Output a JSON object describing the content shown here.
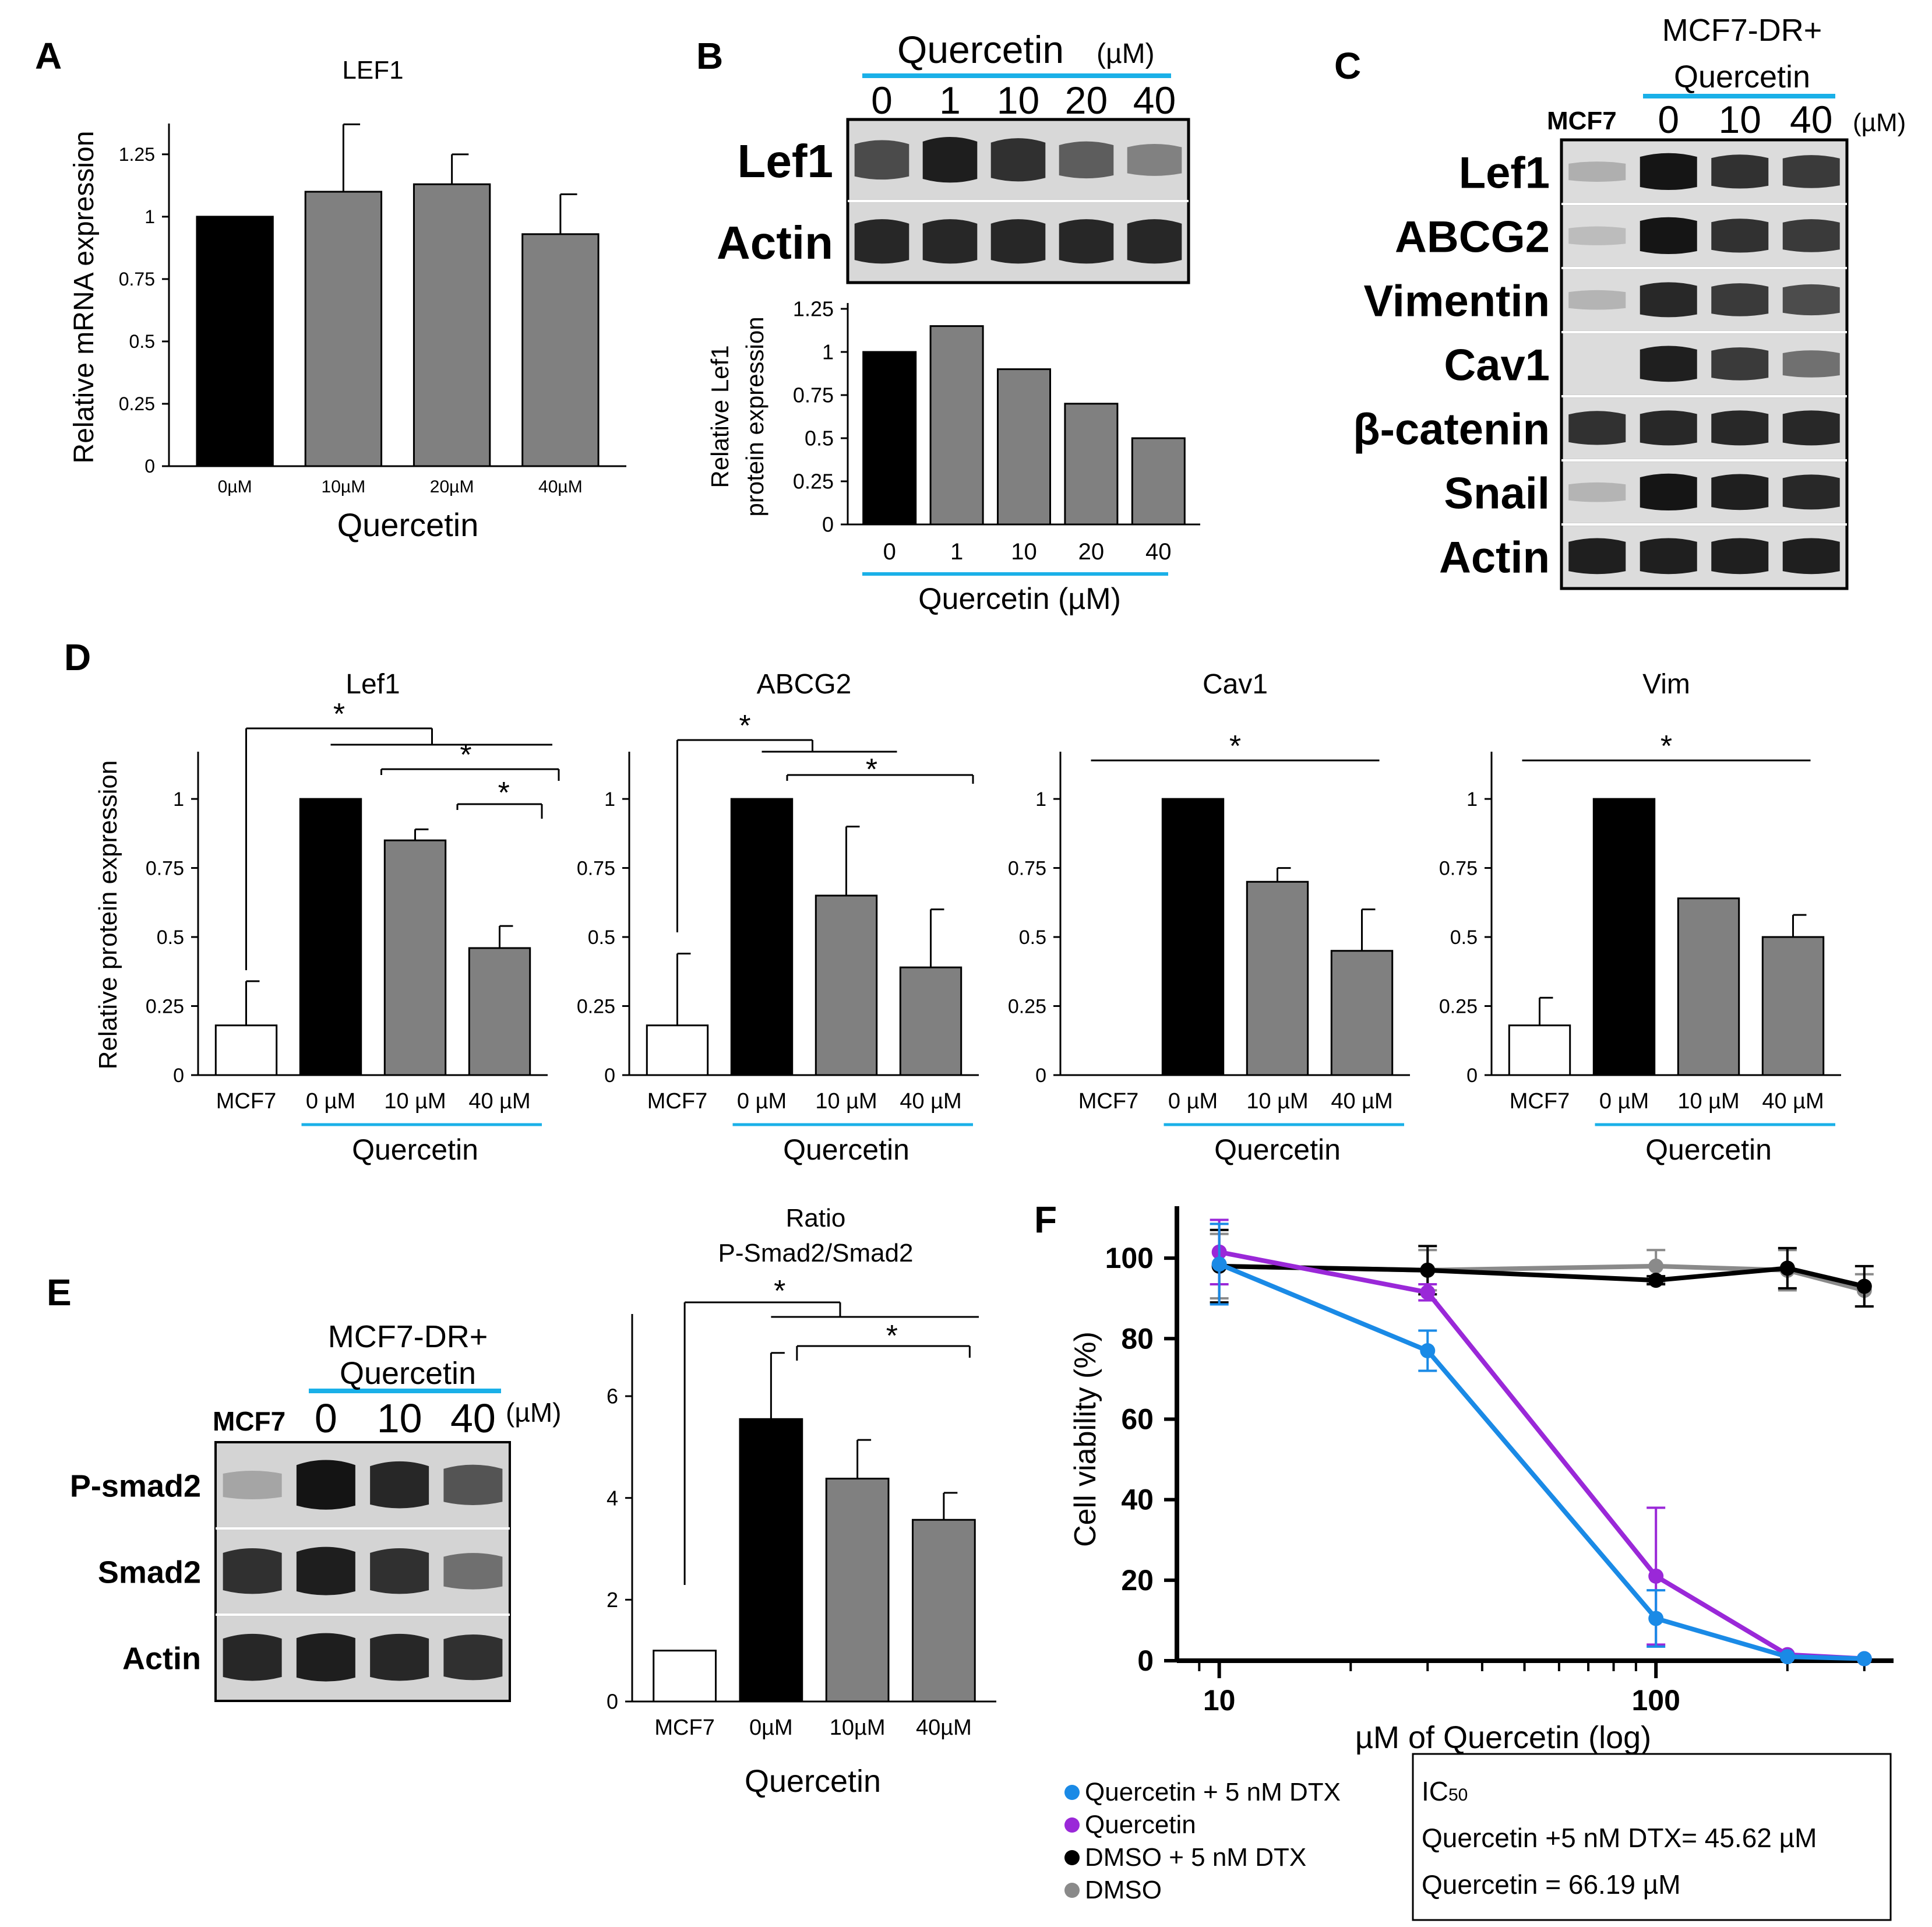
{
  "figure": {
    "panel_letters": [
      "A",
      "B",
      "C",
      "D",
      "E",
      "F"
    ]
  },
  "colors": {
    "black": "#000000",
    "gray": "#808080",
    "white": "#ffffff",
    "accent_line": "#1ab0e8",
    "blue_series": "#1a8ae6",
    "purple_series": "#9a28d8",
    "gray_series": "#8a8a8a"
  },
  "blots": {
    "B": {
      "header_title": "Quercetin",
      "header_unit": "(µM)",
      "lanes": [
        "0",
        "1",
        "10",
        "20",
        "40"
      ],
      "rows": [
        "Lef1",
        "Actin"
      ],
      "intensity": [
        [
          0.7,
          0.95,
          0.85,
          0.6,
          0.4
        ],
        [
          0.9,
          0.9,
          0.9,
          0.9,
          0.9
        ]
      ]
    },
    "C": {
      "header_line1": "MCF7-DR+",
      "header_line2": "Quercetin",
      "control_label": "MCF7",
      "lanes": [
        "0",
        "10",
        "40"
      ],
      "unit": "(µM)",
      "rows": [
        "Lef1",
        "ABCG2",
        "Vimentin",
        "Cav1",
        "β-catenin",
        "Snail",
        "Actin"
      ],
      "intensity": [
        [
          0.15,
          1.0,
          0.85,
          0.8
        ],
        [
          0.08,
          1.0,
          0.85,
          0.8
        ],
        [
          0.12,
          0.9,
          0.8,
          0.7
        ],
        [
          0.0,
          0.95,
          0.8,
          0.5
        ],
        [
          0.85,
          0.9,
          0.9,
          0.9
        ],
        [
          0.12,
          1.0,
          0.95,
          0.9
        ],
        [
          0.95,
          0.95,
          0.95,
          0.95
        ]
      ]
    },
    "E": {
      "header_line1": "MCF7-DR+",
      "header_line2": "Quercetin",
      "control_label": "MCF7",
      "lanes": [
        "0",
        "10",
        "40"
      ],
      "unit": "(µM)",
      "rows": [
        "P-smad2",
        "Smad2",
        "Actin"
      ],
      "intensity": [
        [
          0.2,
          1.0,
          0.9,
          0.65
        ],
        [
          0.85,
          0.95,
          0.85,
          0.5
        ],
        [
          0.9,
          0.95,
          0.9,
          0.85
        ]
      ]
    }
  },
  "legend_F": [
    {
      "label": "Quercetin + 5 nM DTX",
      "color": "#1a8ae6"
    },
    {
      "label": "Quercetin",
      "color": "#9a28d8"
    },
    {
      "label": "DMSO + 5 nM DTX",
      "color": "#000000"
    },
    {
      "label": "DMSO",
      "color": "#8a8a8a"
    }
  ],
  "ic50_box": {
    "title": "IC",
    "title_sub": "50",
    "line1": "Quercetin +5 nM DTX= 45.62 µM",
    "line2": "Quercetin = 66.19 µM"
  },
  "chart_data": [
    {
      "id": "A",
      "type": "bar",
      "title": "LEF1",
      "xlabel": "Quercetin",
      "ylabel": "Relative mRNA expression",
      "categories": [
        "0µM",
        "10µM",
        "20µM",
        "40µM"
      ],
      "values": [
        1.0,
        1.1,
        1.13,
        0.93
      ],
      "errors": [
        0.0,
        0.27,
        0.12,
        0.16
      ],
      "fills": [
        "#000000",
        "#808080",
        "#808080",
        "#808080"
      ],
      "ylim": [
        0,
        1.35
      ],
      "yticks": [
        0,
        0.25,
        0.5,
        0.75,
        1,
        1.25
      ],
      "yticklabels": [
        "0",
        "0.25",
        "0.5",
        "0.75",
        "1",
        "1.25"
      ]
    },
    {
      "id": "B",
      "type": "bar",
      "title": "",
      "xlabel": "Quercetin (µM)",
      "ylabel_line1": "Relative Lef1",
      "ylabel_line2": "protein expression",
      "categories": [
        "0",
        "1",
        "10",
        "20",
        "40"
      ],
      "values": [
        1.0,
        1.15,
        0.9,
        0.7,
        0.5
      ],
      "fills": [
        "#000000",
        "#808080",
        "#808080",
        "#808080",
        "#808080"
      ],
      "ylim": [
        0,
        1.25
      ],
      "yticks": [
        0,
        0.25,
        0.5,
        0.75,
        1,
        1.25
      ],
      "yticklabels": [
        "0",
        "0.25",
        "0.5",
        "0.75",
        "1",
        "1.25"
      ]
    },
    {
      "id": "D-Lef1",
      "type": "bar",
      "title": "Lef1",
      "ylabel": "Relative protein expression",
      "xlabel": "Quercetin",
      "categories": [
        "MCF7",
        "0 µM",
        "10 µM",
        "40 µM"
      ],
      "values": [
        0.18,
        1.0,
        0.85,
        0.46
      ],
      "errors": [
        0.16,
        0.0,
        0.04,
        0.08
      ],
      "fills": [
        "#ffffff",
        "#000000",
        "#808080",
        "#808080"
      ],
      "ylim": [
        0,
        1.15
      ],
      "yticks": [
        0,
        0.25,
        0.5,
        0.75,
        1
      ],
      "yticklabels": [
        "0",
        "0.25",
        "0.5",
        "0.75",
        "1"
      ],
      "significance": "*"
    },
    {
      "id": "D-ABCG2",
      "type": "bar",
      "title": "ABCG2",
      "xlabel": "Quercetin",
      "categories": [
        "MCF7",
        "0 µM",
        "10 µM",
        "40 µM"
      ],
      "values": [
        0.18,
        1.0,
        0.65,
        0.39
      ],
      "errors": [
        0.26,
        0.0,
        0.25,
        0.21
      ],
      "fills": [
        "#ffffff",
        "#000000",
        "#808080",
        "#808080"
      ],
      "ylim": [
        0,
        1.15
      ],
      "yticks": [
        0,
        0.25,
        0.5,
        0.75,
        1
      ],
      "yticklabels": [
        "0",
        "0.25",
        "0.5",
        "0.75",
        "1"
      ],
      "significance": "*"
    },
    {
      "id": "D-Cav1",
      "type": "bar",
      "title": "Cav1",
      "xlabel": "Quercetin",
      "categories": [
        "MCF7",
        "0 µM",
        "10 µM",
        "40 µM"
      ],
      "values": [
        0.0,
        1.0,
        0.7,
        0.45
      ],
      "errors": [
        0.0,
        0.0,
        0.05,
        0.15
      ],
      "fills": [
        "#ffffff",
        "#000000",
        "#808080",
        "#808080"
      ],
      "ylim": [
        0,
        1.15
      ],
      "yticks": [
        0,
        0.25,
        0.5,
        0.75,
        1
      ],
      "yticklabels": [
        "0",
        "0.25",
        "0.5",
        "0.75",
        "1"
      ],
      "significance": "*"
    },
    {
      "id": "D-Vim",
      "type": "bar",
      "title": "Vim",
      "xlabel": "Quercetin",
      "categories": [
        "MCF7",
        "0 µM",
        "10 µM",
        "40 µM"
      ],
      "values": [
        0.18,
        1.0,
        0.64,
        0.5
      ],
      "errors": [
        0.1,
        0.0,
        0.0,
        0.08
      ],
      "fills": [
        "#ffffff",
        "#000000",
        "#808080",
        "#808080"
      ],
      "ylim": [
        0,
        1.15
      ],
      "yticks": [
        0,
        0.25,
        0.5,
        0.75,
        1
      ],
      "yticklabels": [
        "0",
        "0.25",
        "0.5",
        "0.75",
        "1"
      ],
      "significance": "*"
    },
    {
      "id": "E",
      "type": "bar",
      "title_line1": "Ratio",
      "title_line2": "P-Smad2/Smad2",
      "xlabel": "Quercetin",
      "categories": [
        "MCF7",
        "0µM",
        "10µM",
        "40µM"
      ],
      "values": [
        1.0,
        5.55,
        4.38,
        3.57
      ],
      "errors": [
        0.0,
        1.3,
        0.76,
        0.53
      ],
      "fills": [
        "#ffffff",
        "#000000",
        "#808080",
        "#808080"
      ],
      "ylim": [
        0,
        7.5
      ],
      "yticks": [
        0,
        2,
        4,
        6
      ],
      "yticklabels": [
        "0",
        "2",
        "4",
        "6"
      ],
      "significance": "*"
    },
    {
      "id": "F",
      "type": "line",
      "xlabel": "µM of Quercetin (log)",
      "ylabel": "Cell viability (%)",
      "x_scale": "log",
      "xlim": [
        8,
        350
      ],
      "ylim": [
        0,
        110
      ],
      "xticks": [
        10,
        100
      ],
      "xticklabels": [
        "10",
        "100"
      ],
      "yticks": [
        0,
        20,
        40,
        60,
        80,
        100
      ],
      "yticklabels": [
        "0",
        "20",
        "40",
        "60",
        "80",
        "100"
      ],
      "series": [
        {
          "name": "DMSO",
          "color": "#8a8a8a",
          "x": [
            10,
            30,
            100,
            200,
            300
          ],
          "y": [
            98,
            97,
            98,
            97,
            92
          ],
          "errors": [
            8,
            5,
            4,
            5,
            4
          ]
        },
        {
          "name": "DMSO + 5 nM DTX",
          "color": "#000000",
          "x": [
            10,
            30,
            100,
            200,
            300
          ],
          "y": [
            98,
            97,
            94.5,
            97.5,
            93
          ],
          "errors": [
            9,
            6,
            1,
            5,
            5
          ]
        },
        {
          "name": "Quercetin",
          "color": "#9a28d8",
          "x": [
            10,
            30,
            100,
            200,
            300
          ],
          "y": [
            101.5,
            91.5,
            21,
            1.5,
            0.5
          ],
          "errors": [
            8,
            2,
            17,
            0.5,
            0.5
          ]
        },
        {
          "name": "Quercetin + 5 nM DTX",
          "color": "#1a8ae6",
          "x": [
            10,
            30,
            100,
            200,
            300
          ],
          "y": [
            98.5,
            77,
            10.5,
            1,
            0.5
          ],
          "errors": [
            10,
            5,
            7,
            0.5,
            0.5
          ]
        }
      ]
    }
  ]
}
